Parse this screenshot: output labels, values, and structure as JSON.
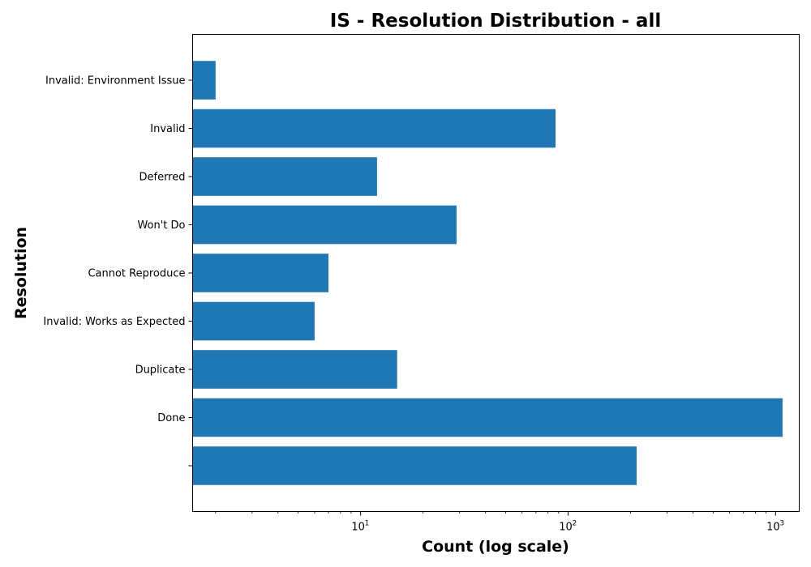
{
  "chart_data": {
    "type": "bar",
    "orientation": "horizontal",
    "title": "IS - Resolution Distribution - all",
    "xlabel": "Count (log scale)",
    "ylabel": "Resolution",
    "x_scale": "log",
    "xlim": [
      1.55,
      1300
    ],
    "x_ticks": [
      {
        "value": 10,
        "base": "10",
        "exp": "1"
      },
      {
        "value": 100,
        "base": "10",
        "exp": "2"
      },
      {
        "value": 1000,
        "base": "10",
        "exp": "3"
      }
    ],
    "categories": [
      "",
      "Done",
      "Duplicate",
      "Invalid: Works as Expected",
      "Cannot Reproduce",
      "Won't Do",
      "Deferred",
      "Invalid",
      "Invalid: Environment Issue"
    ],
    "values": [
      214,
      1080,
      15,
      6,
      7,
      29,
      12,
      87,
      2
    ],
    "bar_color": "#1f77b4",
    "grid": false,
    "legend": "none"
  }
}
